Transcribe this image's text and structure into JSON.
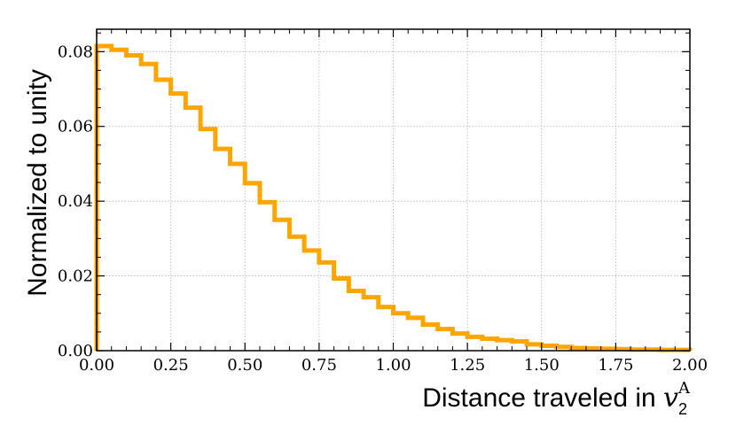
{
  "chart_data": {
    "type": "histogram",
    "xlabel": "Distance traveled in ",
    "xlabel_symbol": "v",
    "xlabel_sub": "2",
    "xlabel_sup": "A",
    "ylabel": "Normalized to unity",
    "xlim": [
      0.0,
      2.0
    ],
    "ylim": [
      0.0,
      0.086
    ],
    "xticks": [
      "0.00",
      "0.25",
      "0.50",
      "0.75",
      "1.00",
      "1.25",
      "1.50",
      "1.75",
      "2.00"
    ],
    "yticks": [
      "0.00",
      "0.02",
      "0.04",
      "0.06",
      "0.08"
    ],
    "grid": true,
    "line_color": "#FFA500",
    "bin_edges": [
      0.0,
      0.05,
      0.1,
      0.15,
      0.2,
      0.25,
      0.3,
      0.35,
      0.4,
      0.45,
      0.5,
      0.55,
      0.6,
      0.65,
      0.7,
      0.75,
      0.8,
      0.85,
      0.9,
      0.95,
      1.0,
      1.05,
      1.1,
      1.15,
      1.2,
      1.25,
      1.3,
      1.35,
      1.4,
      1.45,
      1.5,
      1.55,
      1.6,
      1.65,
      1.7,
      1.75,
      1.8,
      1.85,
      1.9,
      1.95,
      2.0
    ],
    "values": [
      0.0815,
      0.0805,
      0.079,
      0.0767,
      0.0725,
      0.0688,
      0.065,
      0.0593,
      0.054,
      0.05,
      0.0448,
      0.0397,
      0.035,
      0.0305,
      0.0268,
      0.0236,
      0.0193,
      0.016,
      0.0143,
      0.0117,
      0.01,
      0.0088,
      0.007,
      0.0058,
      0.0046,
      0.0037,
      0.0032,
      0.0028,
      0.0025,
      0.0017,
      0.0013,
      0.001,
      0.0007,
      0.0006,
      0.0005,
      0.0004,
      0.0003,
      0.0003,
      0.0002,
      0.0002
    ]
  }
}
